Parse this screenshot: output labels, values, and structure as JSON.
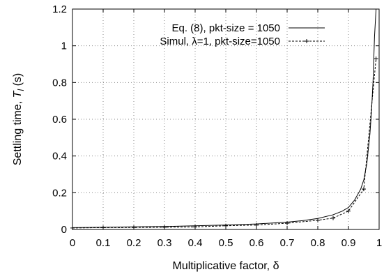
{
  "chart_data": {
    "type": "line",
    "xlabel": "Multiplicative factor, δ",
    "ylabel_main": "Settling time, ",
    "ylabel_symbol": "T",
    "ylabel_sub": "l",
    "ylabel_unit": " (s)",
    "xlim": [
      0,
      1
    ],
    "ylim": [
      0,
      1.2
    ],
    "x_ticks": [
      0,
      0.1,
      0.2,
      0.3,
      0.4,
      0.5,
      0.6,
      0.7,
      0.8,
      0.9,
      1
    ],
    "y_ticks": [
      0,
      0.2,
      0.4,
      0.6,
      0.8,
      1,
      1.2
    ],
    "x_tick_labels": [
      "0",
      "0.1",
      "0.2",
      "0.3",
      "0.4",
      "0.5",
      "0.6",
      "0.7",
      "0.8",
      "0.9",
      "1"
    ],
    "y_tick_labels": [
      "0",
      "0.2",
      "0.4",
      "0.6",
      "0.8",
      "1",
      "1.2"
    ],
    "grid": true,
    "legend_position": "top-right",
    "series": [
      {
        "name": "Eq. (8), pkt-size = 1050",
        "style": "solid",
        "color": "#000000",
        "x": [
          0,
          0.1,
          0.2,
          0.3,
          0.4,
          0.5,
          0.6,
          0.7,
          0.75,
          0.8,
          0.85,
          0.88,
          0.9,
          0.92,
          0.94,
          0.95,
          0.96,
          0.97,
          0.975,
          0.98,
          0.985,
          0.99
        ],
        "y": [
          0.01,
          0.012,
          0.014,
          0.016,
          0.02,
          0.024,
          0.03,
          0.04,
          0.048,
          0.06,
          0.08,
          0.1,
          0.12,
          0.16,
          0.22,
          0.27,
          0.36,
          0.52,
          0.64,
          0.8,
          1.05,
          1.2
        ]
      },
      {
        "name_prefix": "Simul, ",
        "name_symbol": "λ",
        "name_suffix": "=1, pkt-size=1050",
        "style": "dashed",
        "marker": "plus",
        "color": "#000000",
        "x": [
          0,
          0.1,
          0.2,
          0.3,
          0.4,
          0.5,
          0.6,
          0.7,
          0.8,
          0.85,
          0.9,
          0.95,
          0.99
        ],
        "y": [
          0.008,
          0.01,
          0.011,
          0.012,
          0.014,
          0.02,
          0.024,
          0.034,
          0.05,
          0.062,
          0.1,
          0.22,
          0.93
        ]
      }
    ]
  }
}
